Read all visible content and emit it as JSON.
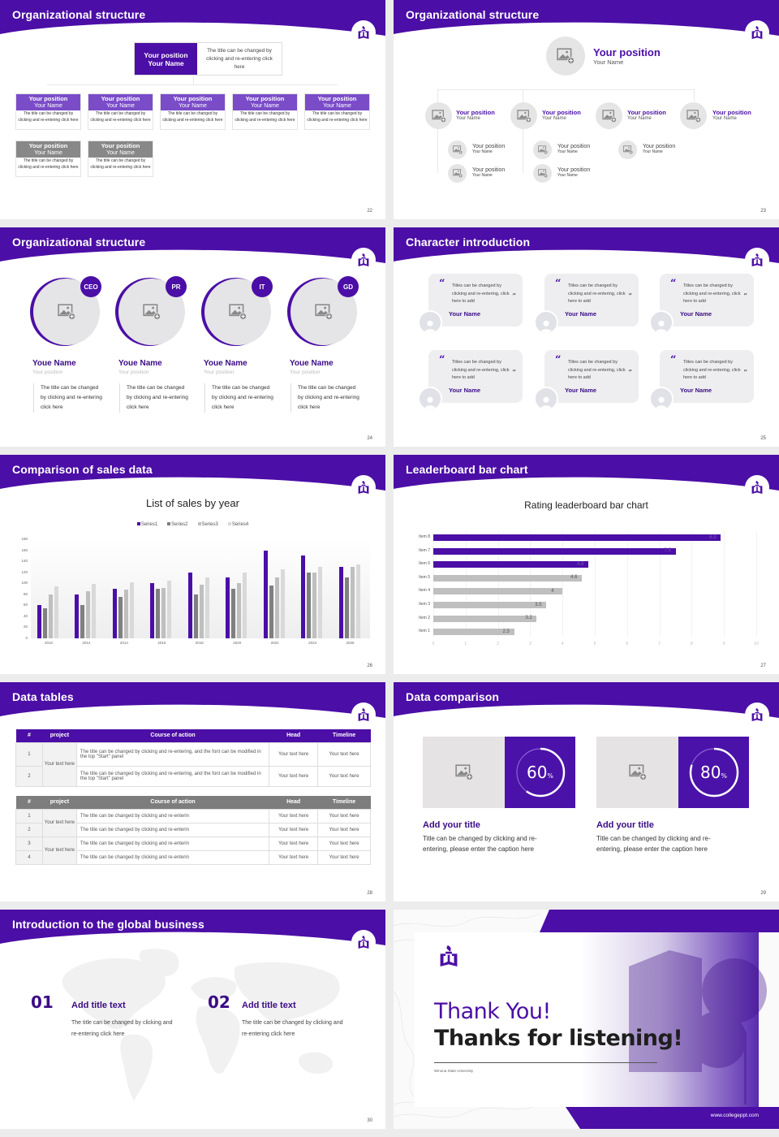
{
  "theme": {
    "accent": "#4b0ea6",
    "accent_light": "#7a4cc8",
    "gray": "#888888",
    "light_gray": "#e5e5e5"
  },
  "slides": {
    "s22": {
      "title": "Organizational structure",
      "page": "22",
      "top": {
        "position": "Your position",
        "name": "Your Name",
        "desc": "The title can be changed by clicking and re-entering click here"
      },
      "cards": [
        {
          "position": "Your position",
          "name": "Your Name",
          "desc": "The title can be changed by clicking and re-entering click here"
        },
        {
          "position": "Your position",
          "name": "Your Name",
          "desc": "The title can be changed by clicking and re-entering click here"
        },
        {
          "position": "Your position",
          "name": "Your Name",
          "desc": "The title can be changed by clicking and re-entering click here"
        },
        {
          "position": "Your position",
          "name": "Your Name",
          "desc": "The title can be changed by clicking and re-entering click here"
        },
        {
          "position": "Your position",
          "name": "Your Name",
          "desc": "The title can be changed by clicking and re-entering click here"
        },
        {
          "position": "Your position",
          "name": "Your Name",
          "desc": "The title can be changed by clicking and re-entering click here"
        },
        {
          "position": "Your position",
          "name": "Your Name",
          "desc": "The title can be changed by clicking and re-entering click here"
        }
      ]
    },
    "s23": {
      "title": "Organizational structure",
      "page": "23",
      "top": {
        "position": "Your position",
        "name": "Your Name"
      },
      "level2": [
        {
          "position": "Your position",
          "name": "Your Name"
        },
        {
          "position": "Your position",
          "name": "Your Name"
        },
        {
          "position": "Your position",
          "name": "Your Name"
        },
        {
          "position": "Your position",
          "name": "Your Name"
        }
      ],
      "level3": [
        {
          "position": "Your position",
          "name": "Your Name"
        },
        {
          "position": "Your position",
          "name": "Your Name"
        },
        {
          "position": "Your position",
          "name": "Your Name"
        },
        {
          "position": "Your position",
          "name": "Your Name"
        },
        {
          "position": "Your position",
          "name": "Your Name"
        }
      ]
    },
    "s24": {
      "title": "Organizational structure",
      "page": "24",
      "people": [
        {
          "tag": "CEO",
          "name": "Youe Name",
          "position": "Your position",
          "desc": "The title can be changed by clicking and re-entering click here"
        },
        {
          "tag": "PR",
          "name": "Youe Name",
          "position": "Your position",
          "desc": "The title can be changed by clicking and re-entering click here"
        },
        {
          "tag": "IT",
          "name": "Youe Name",
          "position": "Your position",
          "desc": "The title can be changed by clicking and re-entering click here"
        },
        {
          "tag": "GD",
          "name": "Youe Name",
          "position": "Your position",
          "desc": "The title can be changed by clicking and re-entering click here"
        }
      ]
    },
    "s25": {
      "title": "Character introduction",
      "page": "25",
      "quotes": [
        {
          "text": "Titles can be changed by clicking and re-entering, click here to add",
          "name": "Your Name"
        },
        {
          "text": "Titles can be changed by clicking and re-entering, click here to add",
          "name": "Your Name"
        },
        {
          "text": "Titles can be changed by clicking and re-entering, click here to add",
          "name": "Your Name"
        },
        {
          "text": "Titles can be changed by clicking and re-entering, click here to add",
          "name": "Your Name"
        },
        {
          "text": "Titles can be changed by clicking and re-entering, click here to add",
          "name": "Your Name"
        },
        {
          "text": "Titles can be changed by clicking and re-entering, click here to add",
          "name": "Your Name"
        }
      ],
      "open_quote": "“",
      "close_quote": "”"
    },
    "s26": {
      "title": "Comparison of sales data",
      "page": "26"
    },
    "s27": {
      "title": "Leaderboard bar chart",
      "page": "27"
    },
    "s28": {
      "title": "Data tables",
      "page": "28",
      "headers": [
        "#",
        "project",
        "Course of action",
        "Head",
        "Timeline"
      ],
      "table1": {
        "rows": [
          {
            "num": "1",
            "action": "The title can be changed by clicking and re-entering, and the font can be modified in the top \"Start\" panel",
            "head": "Your text here",
            "timeline": "Your text here"
          },
          {
            "num": "2",
            "action": "The title can be changed by clicking and re-entering, and the font can be modified in the top \"Start\" panel",
            "head": "Your text here",
            "timeline": "Your text here"
          }
        ],
        "project": "Your text here"
      },
      "table2": {
        "rows": [
          {
            "num": "1",
            "action": "The title can be changed by clicking and re-enterin",
            "head": "Your text here",
            "timeline": "Your text here"
          },
          {
            "num": "2",
            "action": "The title can be changed by clicking and re-enterin",
            "head": "Your text here",
            "timeline": "Your text here"
          },
          {
            "num": "3",
            "action": "The title can be changed by clicking and re-enterin",
            "head": "Your text here",
            "timeline": "Your text here"
          },
          {
            "num": "4",
            "action": "The title can be changed by clicking and re-enterin",
            "head": "Your text here",
            "timeline": "Your text here"
          }
        ],
        "projects": [
          "Your text here",
          "Your text here"
        ]
      }
    },
    "s29": {
      "title": "Data comparison",
      "page": "29",
      "items": [
        {
          "value": "60",
          "unit": "%",
          "title": "Add your title",
          "desc": "Title can be changed by clicking and re-entering, please enter the caption here"
        },
        {
          "value": "80",
          "unit": "%",
          "title": "Add your title",
          "desc": "Title can be changed by clicking and re-entering, please enter the caption here"
        }
      ]
    },
    "s30": {
      "title": "Introduction to the global business",
      "page": "30",
      "items": [
        {
          "num": "01",
          "title": "Add title text",
          "desc": "The title can be changed by clicking and re-entering click here"
        },
        {
          "num": "02",
          "title": "Add title text",
          "desc": "The title can be changed by clicking and re-entering click here"
        }
      ]
    },
    "s31": {
      "line1": "Thank You!",
      "line2": "Thanks for listening!",
      "university": "Winona State University",
      "url": "www.collegeppt.com"
    }
  },
  "chart_data": [
    {
      "type": "bar",
      "title": "List of sales by year",
      "categories": [
        "2010",
        "2012",
        "2014",
        "2016",
        "2018",
        "2020",
        "2022",
        "2024",
        "2026"
      ],
      "series": [
        {
          "name": "Series1",
          "color": "#4b0ea6",
          "values": [
            60,
            80,
            90,
            100,
            120,
            110,
            160,
            150,
            130
          ]
        },
        {
          "name": "Series2",
          "color": "#808080",
          "values": [
            55,
            60,
            75,
            90,
            80,
            90,
            96,
            120,
            110
          ]
        },
        {
          "name": "Series3",
          "color": "#bfbfbf",
          "values": [
            80,
            86,
            88,
            92,
            98,
            100,
            110,
            120,
            130
          ]
        },
        {
          "name": "Series4",
          "color": "#d9d9d9",
          "values": [
            95,
            99,
            102,
            105,
            110,
            120,
            126,
            130,
            135
          ]
        }
      ],
      "yticks": [
        "0",
        "20",
        "40",
        "60",
        "80",
        "100",
        "120",
        "140",
        "160",
        "180"
      ],
      "ylim": [
        0,
        180
      ],
      "legend_position": "top",
      "xlabel": "",
      "ylabel": ""
    },
    {
      "type": "bar",
      "orientation": "horizontal",
      "title": "Rating leaderboard bar chart",
      "categories": [
        "Item 1",
        "Item 2",
        "Item 3",
        "Item 4",
        "Item 5",
        "Item 6",
        "Item 7",
        "Item 8"
      ],
      "values": [
        2.5,
        3.2,
        3.5,
        4,
        4.6,
        4.8,
        7.5,
        8.9
      ],
      "labels": [
        "2.5",
        "3.2",
        "3.5",
        "4",
        "4.6",
        "4.8",
        "7.5",
        "8.9"
      ],
      "colors": [
        "#bfbfbf",
        "#bfbfbf",
        "#bfbfbf",
        "#bfbfbf",
        "#bfbfbf",
        "#4b0ea6",
        "#4b0ea6",
        "#4b0ea6"
      ],
      "xticks": [
        "0",
        "1",
        "2",
        "3",
        "4",
        "5",
        "6",
        "7",
        "8",
        "9",
        "10"
      ],
      "xlim": [
        0,
        10
      ],
      "xlabel": "",
      "ylabel": ""
    }
  ]
}
